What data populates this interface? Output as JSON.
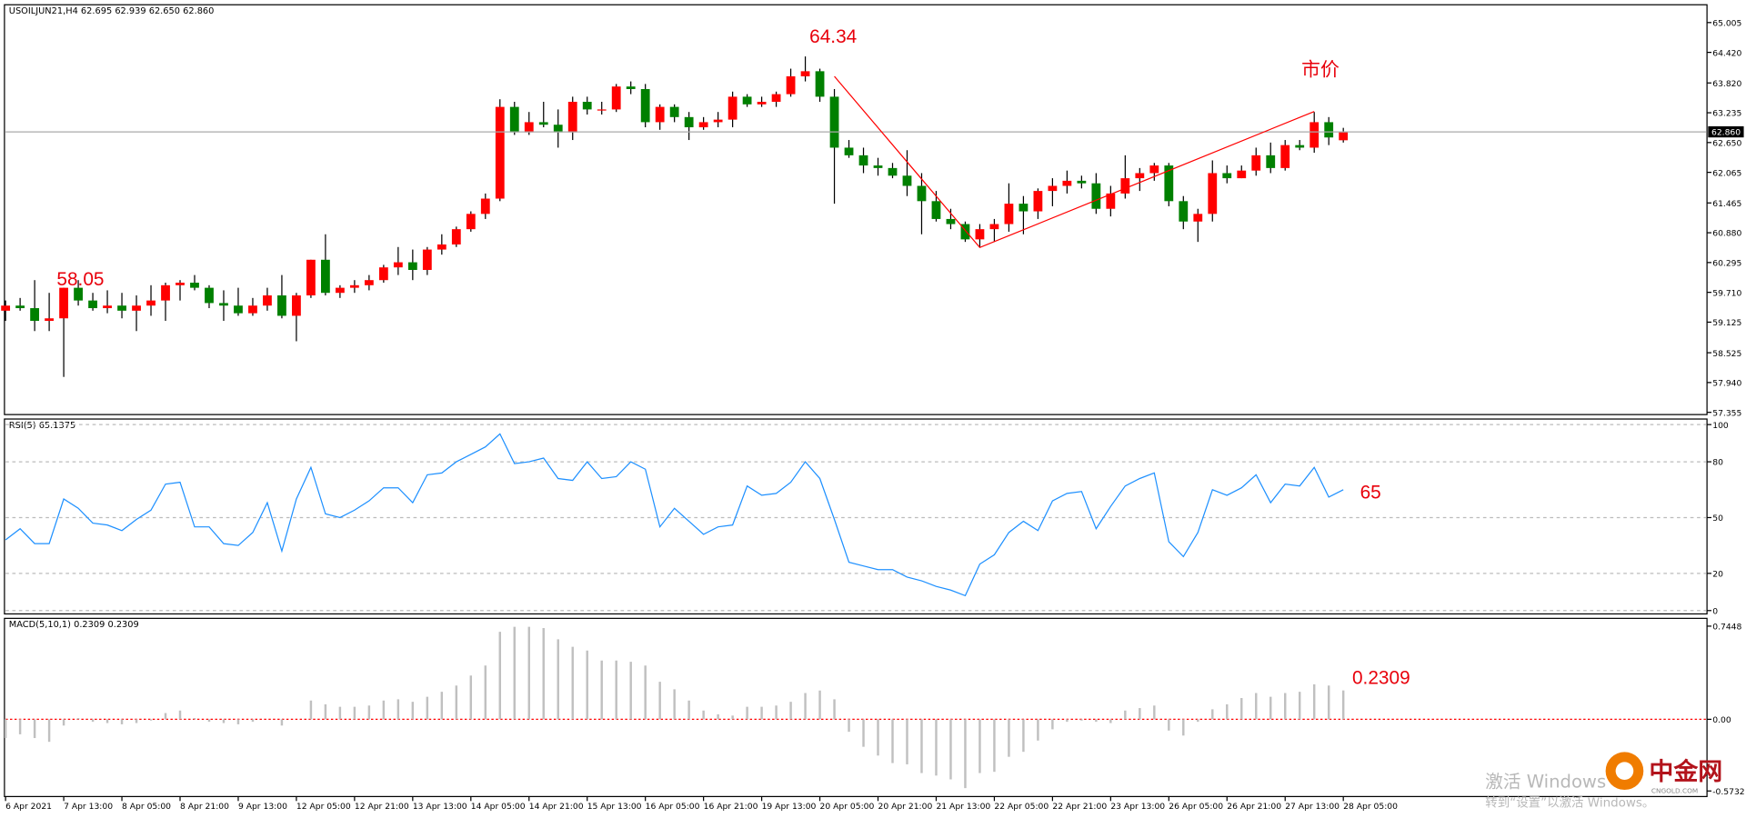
{
  "chart_data": [
    {
      "type": "candlestick",
      "title": "USOILJUN21,H4  62.695 62.939 62.650 62.860",
      "categories": [
        "6 Apr 2021",
        null,
        null,
        null,
        "7 Apr 13:00",
        null,
        null,
        null,
        "8 Apr 05:00",
        null,
        null,
        null,
        "8 Apr 21:00",
        null,
        null,
        null,
        "9 Apr 13:00",
        null,
        null,
        null,
        "12 Apr 05:00",
        null,
        null,
        null,
        "12 Apr 21:00",
        null,
        null,
        null,
        "13 Apr 13:00",
        null,
        null,
        null,
        "14 Apr 05:00",
        null,
        null,
        null,
        "14 Apr 21:00",
        null,
        null,
        null,
        "15 Apr 13:00",
        null,
        null,
        null,
        "16 Apr 05:00",
        null,
        null,
        null,
        "16 Apr 21:00",
        null,
        null,
        null,
        "19 Apr 13:00",
        null,
        null,
        null,
        "20 Apr 05:00",
        null,
        null,
        null,
        "20 Apr 21:00",
        null,
        null,
        null,
        "21 Apr 13:00",
        null,
        null,
        null,
        "22 Apr 05:00",
        null,
        null,
        null,
        "22 Apr 21:00",
        null,
        null,
        null,
        "23 Apr 13:00",
        null,
        null,
        null,
        "26 Apr 05:00",
        null,
        null,
        null,
        "26 Apr 21:00",
        null,
        null,
        null,
        "27 Apr 13:00",
        null,
        null,
        null,
        "28 Apr 05:00"
      ],
      "open": [
        59.35,
        59.45,
        59.4,
        59.15,
        59.2,
        59.8,
        59.55,
        59.4,
        59.45,
        59.35,
        59.45,
        59.55,
        59.85,
        59.9,
        59.8,
        59.5,
        59.45,
        59.3,
        59.45,
        59.65,
        59.25,
        59.65,
        60.35,
        59.7,
        59.8,
        59.85,
        59.95,
        60.2,
        60.3,
        60.15,
        60.55,
        60.65,
        60.95,
        61.25,
        61.55,
        63.35,
        62.85,
        63.05,
        63.0,
        62.85,
        63.45,
        63.3,
        63.3,
        63.75,
        63.7,
        63.05,
        63.35,
        63.15,
        62.95,
        63.05,
        63.1,
        63.55,
        63.4,
        63.45,
        63.6,
        63.95,
        64.05,
        63.55,
        62.55,
        62.4,
        62.2,
        62.15,
        62.0,
        61.8,
        61.5,
        61.15,
        61.05,
        60.75,
        60.95,
        61.05,
        61.45,
        61.3,
        61.7,
        61.8,
        61.9,
        61.85,
        61.35,
        61.65,
        61.95,
        62.05,
        62.2,
        61.5,
        61.1,
        61.25,
        62.05,
        61.95,
        62.1,
        62.4,
        62.15,
        62.6,
        62.55,
        63.05,
        62.695
      ],
      "high": [
        59.55,
        59.6,
        59.95,
        59.7,
        59.8,
        59.95,
        59.7,
        59.75,
        59.7,
        59.65,
        59.85,
        59.9,
        59.95,
        60.05,
        59.85,
        59.75,
        59.8,
        59.6,
        59.8,
        60.05,
        59.7,
        60.35,
        60.85,
        59.85,
        59.95,
        60.05,
        60.25,
        60.6,
        60.55,
        60.6,
        60.85,
        61.0,
        61.3,
        61.65,
        63.5,
        63.45,
        63.25,
        63.45,
        63.3,
        63.55,
        63.55,
        63.45,
        63.8,
        63.85,
        63.8,
        63.4,
        63.4,
        63.25,
        63.15,
        63.25,
        63.65,
        63.6,
        63.55,
        63.65,
        64.1,
        64.34,
        64.1,
        63.7,
        62.7,
        62.55,
        62.35,
        62.25,
        62.5,
        62.05,
        61.7,
        61.35,
        61.1,
        61.05,
        61.15,
        61.85,
        61.6,
        61.75,
        61.95,
        62.1,
        62.0,
        62.05,
        61.8,
        62.4,
        62.15,
        62.25,
        62.25,
        61.6,
        61.35,
        62.3,
        62.2,
        62.2,
        62.55,
        62.65,
        62.7,
        62.7,
        63.25,
        63.15,
        62.939
      ],
      "low": [
        59.15,
        59.35,
        58.95,
        58.95,
        58.05,
        59.45,
        59.35,
        59.3,
        59.2,
        58.95,
        59.25,
        59.15,
        59.55,
        59.75,
        59.4,
        59.15,
        59.25,
        59.25,
        59.35,
        59.2,
        58.75,
        59.6,
        59.65,
        59.6,
        59.7,
        59.75,
        59.9,
        60.05,
        59.95,
        60.05,
        60.45,
        60.6,
        60.9,
        61.15,
        61.5,
        62.8,
        62.8,
        62.95,
        62.55,
        62.7,
        63.2,
        63.2,
        63.25,
        63.6,
        62.95,
        62.9,
        63.05,
        62.7,
        62.9,
        62.95,
        62.95,
        63.35,
        63.35,
        63.35,
        63.55,
        63.85,
        63.45,
        61.45,
        62.35,
        62.05,
        62.0,
        61.95,
        61.6,
        60.85,
        61.1,
        60.95,
        60.7,
        60.59,
        60.7,
        60.9,
        60.85,
        61.15,
        61.4,
        61.65,
        61.75,
        61.25,
        61.2,
        61.55,
        61.7,
        61.9,
        61.4,
        60.95,
        60.7,
        61.1,
        61.85,
        61.95,
        62.0,
        62.05,
        62.1,
        62.5,
        62.45,
        62.6,
        62.65
      ],
      "close": [
        59.45,
        59.4,
        59.15,
        59.2,
        59.8,
        59.55,
        59.4,
        59.45,
        59.35,
        59.45,
        59.55,
        59.85,
        59.9,
        59.8,
        59.5,
        59.45,
        59.3,
        59.45,
        59.65,
        59.25,
        59.65,
        60.35,
        59.7,
        59.8,
        59.85,
        59.95,
        60.2,
        60.3,
        60.15,
        60.55,
        60.65,
        60.95,
        61.25,
        61.55,
        63.35,
        62.85,
        63.05,
        63.0,
        62.85,
        63.45,
        63.3,
        63.3,
        63.75,
        63.7,
        63.05,
        63.35,
        63.15,
        62.95,
        63.05,
        63.1,
        63.55,
        63.4,
        63.45,
        63.6,
        63.95,
        64.05,
        63.55,
        62.55,
        62.4,
        62.2,
        62.15,
        62.0,
        61.8,
        61.5,
        61.15,
        61.05,
        60.75,
        60.95,
        61.05,
        61.45,
        61.3,
        61.7,
        61.8,
        61.9,
        61.85,
        61.35,
        61.65,
        61.95,
        62.05,
        62.2,
        61.5,
        61.1,
        61.25,
        62.05,
        61.95,
        62.1,
        62.4,
        62.15,
        62.6,
        62.55,
        63.05,
        62.75,
        62.86
      ],
      "up_color": "#ff0000",
      "down_color": "#008000",
      "ylim": [
        57.355,
        65.005
      ],
      "yticks": [
        65.005,
        {
          "value": 64.42,
          "label": "64.420"
        },
        {
          "value": 63.82,
          "label": "63.820"
        },
        63.235,
        {
          "value": 62.65,
          "label": "62.650"
        },
        62.065,
        61.465,
        {
          "value": 60.88,
          "label": "60.880"
        },
        60.295,
        {
          "value": 59.71,
          "label": "59.710"
        },
        59.125,
        58.525,
        {
          "value": 57.94,
          "label": "57.940"
        },
        57.355
      ],
      "last_label": "62.860",
      "trend_line": {
        "x": [
          57,
          67,
          90
        ],
        "y": [
          63.95,
          60.59,
          63.26
        ],
        "color": "#ff0000"
      },
      "annotation": "市价"
    },
    {
      "type": "line",
      "title": "RSI(5) 65.1375",
      "color": "#1e90ff",
      "values": [
        38,
        44,
        36,
        36,
        60,
        55,
        47,
        46,
        43,
        49,
        54,
        68,
        69,
        45,
        45,
        36,
        35,
        42,
        58,
        32,
        60,
        77,
        52,
        50,
        54,
        59,
        66,
        66,
        58,
        73,
        74,
        80,
        84,
        88,
        95,
        79,
        80,
        82,
        71,
        70,
        80,
        71,
        72,
        80,
        76,
        45,
        55,
        48,
        41,
        45,
        46,
        67,
        62,
        63,
        69,
        80,
        71,
        49,
        26,
        24,
        22,
        22,
        18,
        16,
        13,
        11,
        8,
        25,
        30,
        42,
        48,
        43,
        59,
        63,
        64,
        44,
        56,
        67,
        71,
        74,
        37,
        29,
        42,
        65,
        62,
        66,
        73,
        58,
        68,
        67,
        77,
        61,
        65
      ],
      "ylim": [
        0,
        100
      ],
      "yticks": [
        0,
        20,
        50,
        80,
        100
      ],
      "grid": true
    },
    {
      "type": "bar",
      "title": "MACD(5,10,1) 0.2309 0.2309",
      "color": "#c0c0c0",
      "zero_color": "#ff0000",
      "values": [
        -0.15,
        -0.12,
        -0.15,
        -0.18,
        -0.05,
        0.01,
        -0.02,
        -0.03,
        -0.04,
        -0.03,
        -0.01,
        0.05,
        0.07,
        0.01,
        -0.02,
        -0.03,
        -0.04,
        -0.02,
        0.0,
        -0.05,
        0.0,
        0.15,
        0.12,
        0.1,
        0.1,
        0.11,
        0.15,
        0.16,
        0.14,
        0.18,
        0.22,
        0.27,
        0.35,
        0.43,
        0.7,
        0.74,
        0.74,
        0.73,
        0.64,
        0.58,
        0.55,
        0.47,
        0.47,
        0.46,
        0.43,
        0.3,
        0.24,
        0.15,
        0.07,
        0.04,
        0.03,
        0.1,
        0.1,
        0.11,
        0.14,
        0.21,
        0.23,
        0.16,
        -0.1,
        -0.22,
        -0.29,
        -0.35,
        -0.36,
        -0.43,
        -0.45,
        -0.48,
        -0.55,
        -0.43,
        -0.42,
        -0.3,
        -0.26,
        -0.17,
        -0.08,
        -0.02,
        -0.01,
        -0.02,
        -0.03,
        0.07,
        0.09,
        0.11,
        -0.09,
        -0.13,
        -0.02,
        0.08,
        0.12,
        0.17,
        0.21,
        0.18,
        0.21,
        0.22,
        0.28,
        0.27,
        0.2309
      ],
      "ylim": [
        -0.5732,
        0.7448
      ],
      "yticks": [
        {
          "value": 0.7448,
          "label": "0.7448"
        },
        {
          "value": 0,
          "label": "0.00"
        },
        -0.5732
      ]
    }
  ],
  "overlay": {
    "watermark": "激活 Windows",
    "watermark_hint": "转到“设置”以激活 Windows。",
    "logo": "中金网",
    "logo_site": "CNGOLD.COM"
  }
}
